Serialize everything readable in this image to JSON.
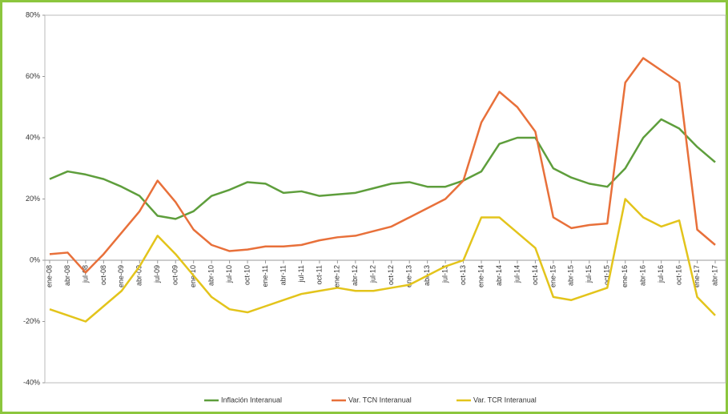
{
  "chart_data": {
    "type": "line",
    "categories": [
      "ene-08",
      "abr-08",
      "jul-08",
      "oct-08",
      "ene-09",
      "abr-09",
      "jul-09",
      "oct-09",
      "ene-10",
      "abr-10",
      "jul-10",
      "oct-10",
      "ene-11",
      "abr-11",
      "jul-11",
      "oct-11",
      "ene-12",
      "abr-12",
      "jul-12",
      "oct-12",
      "ene-13",
      "abr-13",
      "jul-13",
      "oct-13",
      "ene-14",
      "abr-14",
      "jul-14",
      "oct-14",
      "ene-15",
      "abr-15",
      "jul-15",
      "oct-15",
      "ene-16",
      "abr-16",
      "jul-16",
      "oct-16",
      "ene-17",
      "abr-17"
    ],
    "series": [
      {
        "name": "Inflación Interanual",
        "color": "#5e9e3c",
        "values": [
          26.5,
          29,
          28,
          26.5,
          24,
          21,
          14.5,
          13.5,
          16,
          21,
          23,
          25.5,
          25,
          22,
          22.5,
          21,
          21.5,
          22,
          23.5,
          25,
          25.5,
          24,
          24,
          26,
          29,
          38,
          40,
          40,
          30,
          27,
          25,
          24,
          30,
          40,
          46,
          43,
          37,
          32
        ]
      },
      {
        "name": "Var. TCN Interanual",
        "color": "#e8703a",
        "values": [
          2,
          2.5,
          -4,
          2,
          9,
          16,
          26,
          19,
          10,
          5,
          3,
          3.5,
          4.5,
          4.5,
          5,
          6.5,
          7.5,
          8,
          9.5,
          11,
          14,
          17,
          20,
          26,
          45,
          55,
          50,
          42,
          14,
          10.5,
          11.5,
          12,
          58,
          66,
          62,
          58,
          10,
          5
        ]
      },
      {
        "name": "Var. TCR Interanual",
        "color": "#e3c41b",
        "values": [
          -16,
          -18,
          -20,
          -15,
          -10,
          -2,
          8,
          2,
          -5,
          -12,
          -16,
          -17,
          -15,
          -13,
          -11,
          -10,
          -9,
          -10,
          -10,
          -9,
          -8,
          -5,
          -2,
          0,
          14,
          14,
          9,
          4,
          -12,
          -13,
          -11,
          -9,
          20,
          14,
          11,
          13,
          -12,
          -18
        ]
      }
    ],
    "ylim": [
      -40,
      80
    ],
    "yticks": [
      {
        "value": -40,
        "label": "-40%"
      },
      {
        "value": -20,
        "label": "-20%"
      },
      {
        "value": 0,
        "label": "0%"
      },
      {
        "value": 20,
        "label": "20%"
      },
      {
        "value": 40,
        "label": "40%"
      },
      {
        "value": 60,
        "label": "60%"
      },
      {
        "value": 80,
        "label": "80%"
      }
    ]
  }
}
